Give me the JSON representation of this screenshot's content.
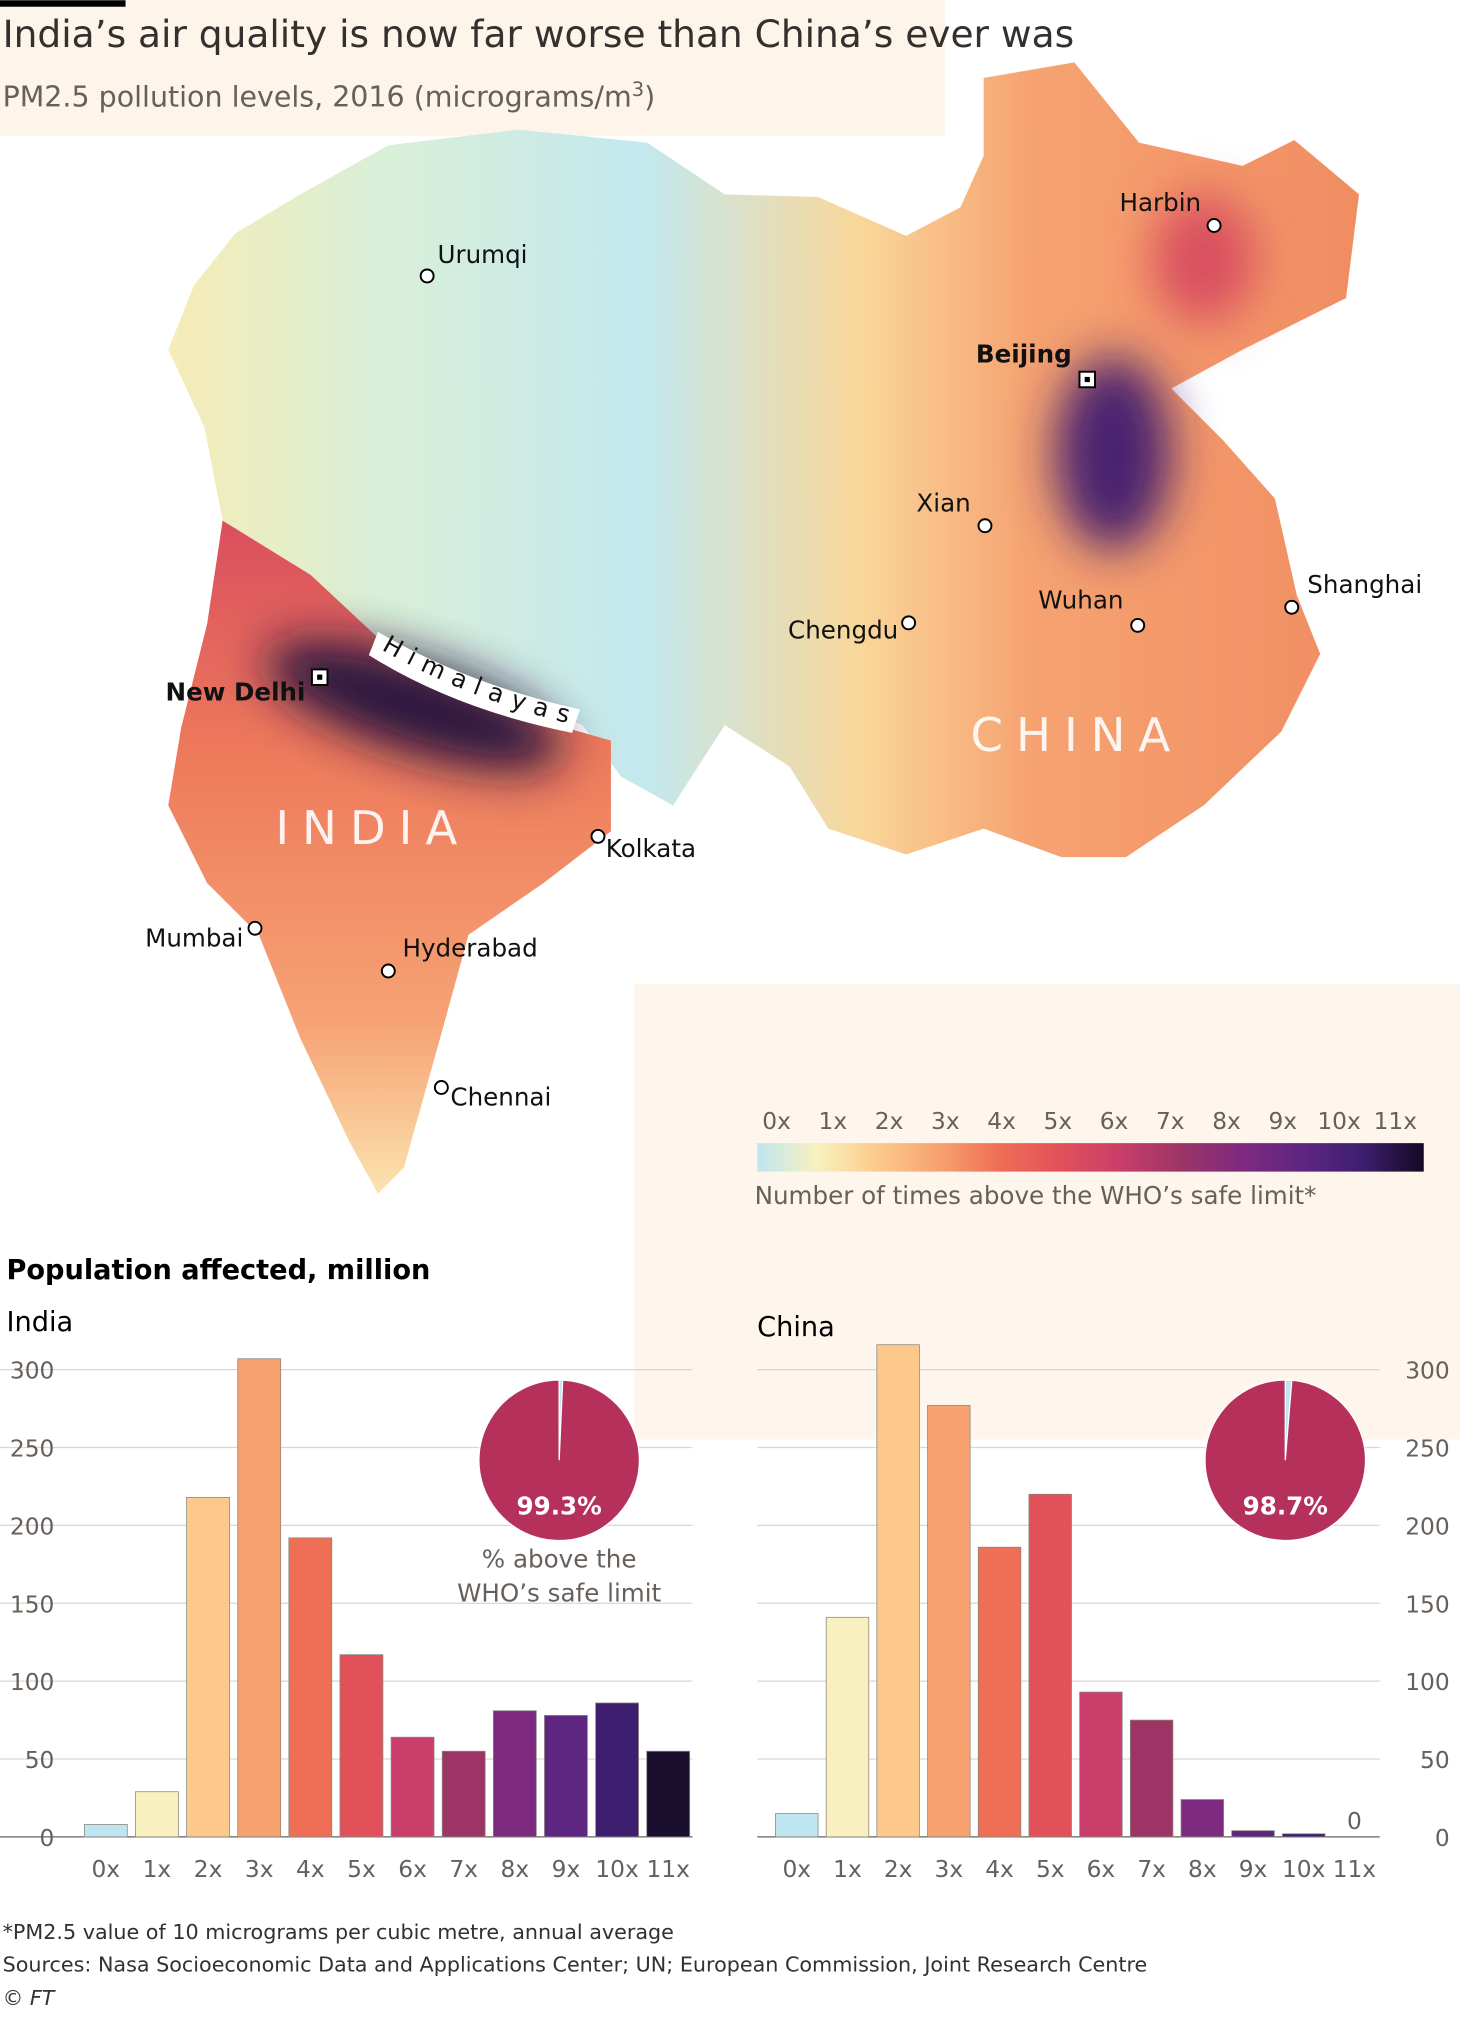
{
  "title": "India’s air quality is now far worse than China’s ever was",
  "subtitle": {
    "text": "PM2.5 pollution levels, 2016 (micrograms/m",
    "sup": "3",
    "end": ")"
  },
  "map": {
    "cities": [
      {
        "name": "Harbin"
      },
      {
        "name": "Urumqi"
      },
      {
        "name": "Beijing",
        "capital": true
      },
      {
        "name": "Xian"
      },
      {
        "name": "Shanghai"
      },
      {
        "name": "Wuhan"
      },
      {
        "name": "Chengdu"
      },
      {
        "name": "New Delhi",
        "capital": true
      },
      {
        "name": "Kolkata"
      },
      {
        "name": "Mumbai"
      },
      {
        "name": "Hyderabad"
      },
      {
        "name": "Chennai"
      }
    ],
    "regions": [
      "INDIA",
      "CHINA"
    ],
    "feature": "Himalayas",
    "legend": {
      "labels": [
        "0x",
        "1x",
        "2x",
        "3x",
        "4x",
        "5x",
        "6x",
        "7x",
        "8x",
        "9x",
        "10x",
        "11x"
      ],
      "colors": [
        "#bfe6f0",
        "#f8f1bf",
        "#fdc98a",
        "#f7a26e",
        "#ef6e56",
        "#e2505a",
        "#c93e6a",
        "#9c3565",
        "#7e2a80",
        "#5e2681",
        "#3d1e6f",
        "#120a22"
      ],
      "caption": "Number of times above the WHO’s safe limit*"
    }
  },
  "charts_heading": "Population affected, million",
  "chart_data": [
    {
      "type": "bar",
      "title": "India",
      "axis_side": "left",
      "categories": [
        "0x",
        "1x",
        "2x",
        "3x",
        "4x",
        "5x",
        "6x",
        "7x",
        "8x",
        "9x",
        "10x",
        "11x"
      ],
      "values": [
        8,
        29,
        218,
        307,
        192,
        117,
        64,
        55,
        81,
        78,
        86,
        55
      ],
      "colors": [
        "#bfe6f0",
        "#f8f1bf",
        "#fdc98a",
        "#f7a26e",
        "#ef6e56",
        "#e2505a",
        "#c93e6a",
        "#9c3565",
        "#7e2a80",
        "#5e2681",
        "#3d1e6f",
        "#1b0f30"
      ],
      "ylim": [
        0,
        300
      ],
      "yticks": [
        0,
        50,
        100,
        150,
        200,
        250,
        300
      ],
      "grid": true,
      "pie": {
        "value": 99.3,
        "label": "99.3%",
        "color": "#b5305a",
        "rest_color": "#bfe6f0",
        "caption": [
          "% above the",
          "WHO’s safe limit"
        ]
      }
    },
    {
      "type": "bar",
      "title": "China",
      "axis_side": "right",
      "show_zero_labels": true,
      "categories": [
        "0x",
        "1x",
        "2x",
        "3x",
        "4x",
        "5x",
        "6x",
        "7x",
        "8x",
        "9x",
        "10x",
        "11x"
      ],
      "values": [
        15,
        141,
        316,
        277,
        186,
        220,
        93,
        75,
        24,
        4,
        2,
        0
      ],
      "colors": [
        "#bfe6f0",
        "#f8f1bf",
        "#fdc98a",
        "#f7a26e",
        "#ef6e56",
        "#e2505a",
        "#c93e6a",
        "#9c3565",
        "#7e2a80",
        "#5e2681",
        "#3d1e6f",
        "#1b0f30"
      ],
      "ylim": [
        0,
        300
      ],
      "yticks": [
        0,
        50,
        100,
        150,
        200,
        250,
        300
      ],
      "grid": true,
      "pie": {
        "value": 98.7,
        "label": "98.7%",
        "color": "#b5305a",
        "rest_color": "#bfe6f0"
      }
    }
  ],
  "footnote": "*PM2.5 value of 10 micrograms per cubic metre, annual average",
  "sources": "Sources: Nasa Socioeconomic Data and Applications Center; UN; European Commission, Joint Research Centre",
  "copyright": "© FT"
}
